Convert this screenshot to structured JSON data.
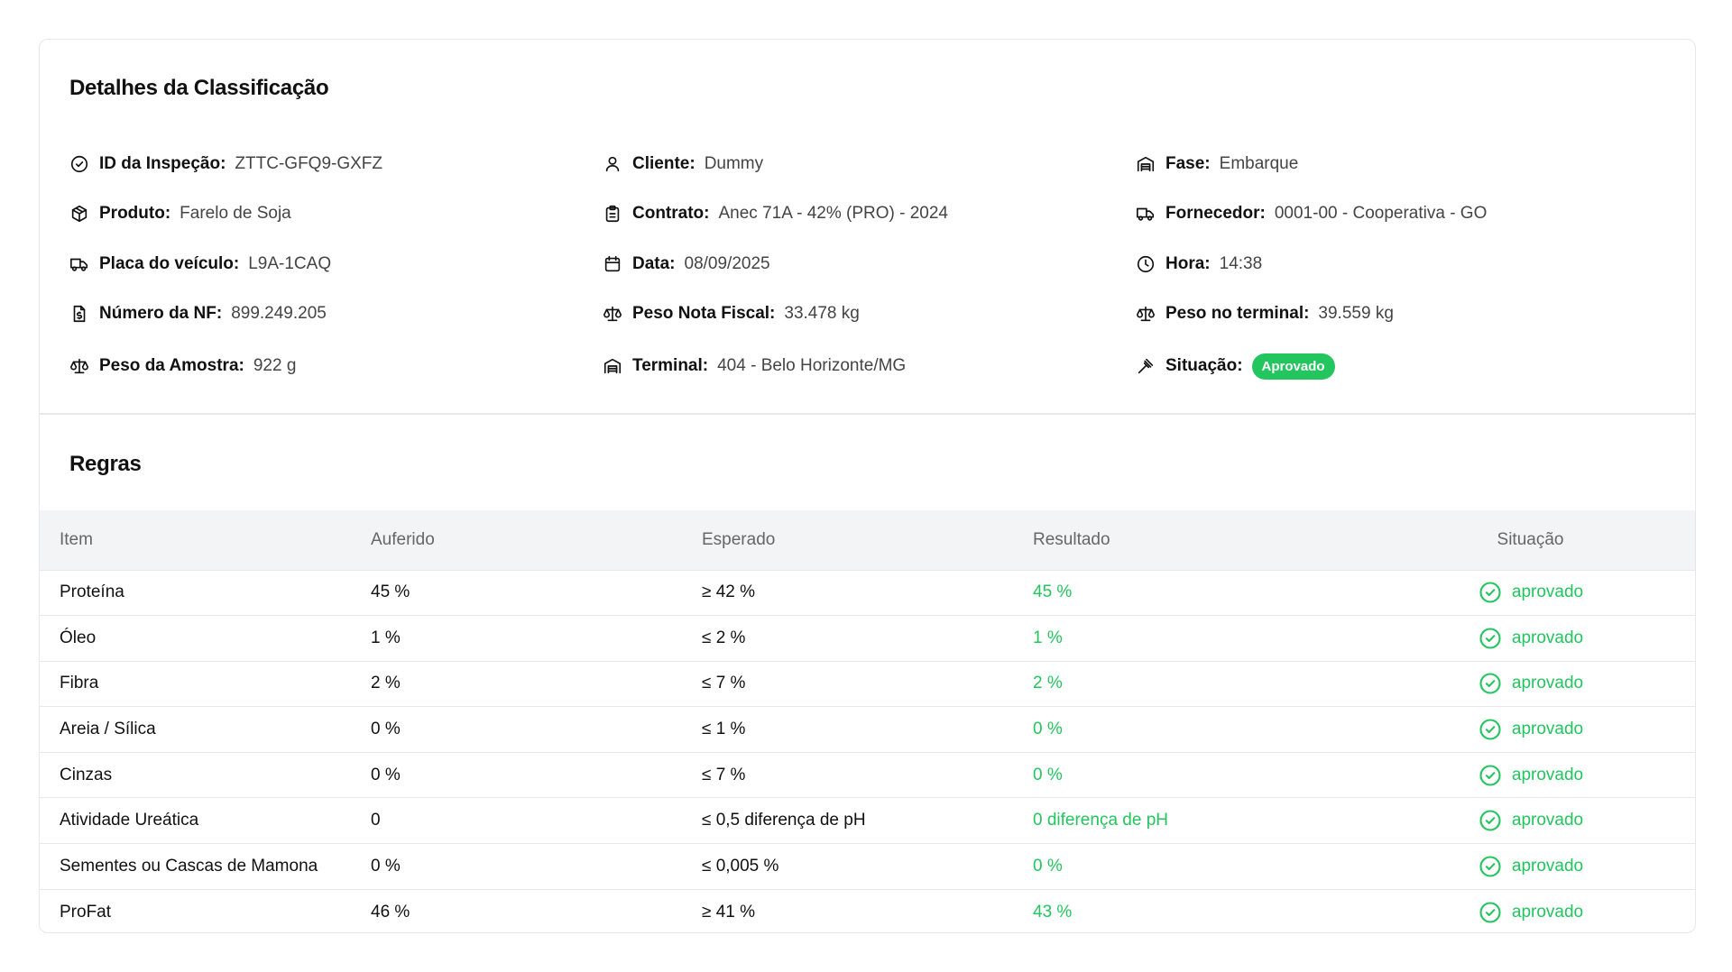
{
  "details": {
    "title": "Detalhes da Classificação",
    "rows": [
      [
        {
          "icon": "circle-check-icon",
          "label": "ID da Inspeção:",
          "value": "ZTTC-GFQ9-GXFZ"
        },
        {
          "icon": "user-icon",
          "label": "Cliente:",
          "value": "Dummy"
        },
        {
          "icon": "warehouse-icon",
          "label": "Fase:",
          "value": "Embarque"
        }
      ],
      [
        {
          "icon": "package-icon",
          "label": "Produto:",
          "value": "Farelo de Soja"
        },
        {
          "icon": "clipboard-icon",
          "label": "Contrato:",
          "value": "Anec 71A - 42% (PRO) - 2024"
        },
        {
          "icon": "truck-icon",
          "label": "Fornecedor:",
          "value": "0001-00 - Cooperativa - GO"
        }
      ],
      [
        {
          "icon": "truck-icon",
          "label": "Placa do veículo:",
          "value": "L9A-1CAQ"
        },
        {
          "icon": "calendar-icon",
          "label": "Data:",
          "value": "08/09/2025"
        },
        {
          "icon": "clock-icon",
          "label": "Hora:",
          "value": "14:38"
        }
      ],
      [
        {
          "icon": "file-dollar-icon",
          "label": "Número da NF:",
          "value": "899.249.205"
        },
        {
          "icon": "scale-icon",
          "label": "Peso Nota Fiscal:",
          "value": "33.478 kg"
        },
        {
          "icon": "scale-icon",
          "label": "Peso no terminal:",
          "value": "39.559 kg"
        }
      ],
      [
        {
          "icon": "scale-icon",
          "label": "Peso da Amostra:",
          "value": "922 g"
        },
        {
          "icon": "warehouse-icon",
          "label": "Terminal:",
          "value": "404 - Belo Horizonte/MG"
        },
        {
          "icon": "gavel-icon",
          "label": "Situação:",
          "badge": "Aprovado"
        }
      ]
    ],
    "badge_color": "#22c55e"
  },
  "rules": {
    "title": "Regras",
    "headers": [
      "Item",
      "Auferido",
      "Esperado",
      "Resultado",
      "Situação"
    ],
    "rows": [
      {
        "item": "Proteína",
        "auferido": "45 %",
        "esperado": "≥ 42 %",
        "resultado": "45 %",
        "situacao": "aprovado"
      },
      {
        "item": "Óleo",
        "auferido": "1 %",
        "esperado": "≤ 2 %",
        "resultado": "1 %",
        "situacao": "aprovado"
      },
      {
        "item": "Fibra",
        "auferido": "2 %",
        "esperado": "≤ 7 %",
        "resultado": "2 %",
        "situacao": "aprovado"
      },
      {
        "item": "Areia / Sílica",
        "auferido": "0 %",
        "esperado": "≤ 1 %",
        "resultado": "0 %",
        "situacao": "aprovado"
      },
      {
        "item": "Cinzas",
        "auferido": "0 %",
        "esperado": "≤ 7 %",
        "resultado": "0 %",
        "situacao": "aprovado"
      },
      {
        "item": "Atividade Ureática",
        "auferido": "0",
        "esperado": "≤ 0,5 diferença de pH",
        "resultado": "0 diferença de pH",
        "situacao": "aprovado"
      },
      {
        "item": "Sementes ou Cascas de Mamona",
        "auferido": "0 %",
        "esperado": "≤ 0,005 %",
        "resultado": "0 %",
        "situacao": "aprovado"
      },
      {
        "item": "ProFat",
        "auferido": "46 %",
        "esperado": "≥ 41 %",
        "resultado": "43 %",
        "situacao": "aprovado"
      }
    ],
    "status_color": "#22c55e"
  }
}
